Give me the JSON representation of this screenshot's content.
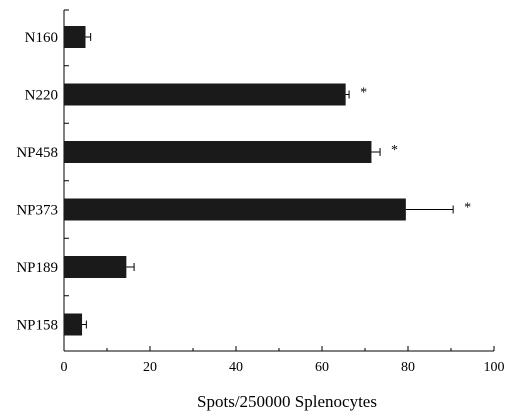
{
  "chart_data": {
    "type": "bar",
    "orientation": "horizontal",
    "categories": [
      "N160",
      "N220",
      "NP458",
      "NP373",
      "NP189",
      "NP158"
    ],
    "values": [
      5,
      65.5,
      71.5,
      79.5,
      14.5,
      4.2
    ],
    "errors": [
      1.2,
      0.8,
      2.0,
      11.0,
      1.8,
      1.0
    ],
    "significance": [
      "",
      "*",
      "*",
      "*",
      "",
      ""
    ],
    "xlabel": "Spots/250000 Splenocytes",
    "ylabel": "",
    "xlim": [
      0,
      100
    ],
    "xticks": [
      0,
      20,
      40,
      60,
      80,
      100
    ],
    "grid": false,
    "legend": "none",
    "bar_color": "#1a1a1a"
  }
}
